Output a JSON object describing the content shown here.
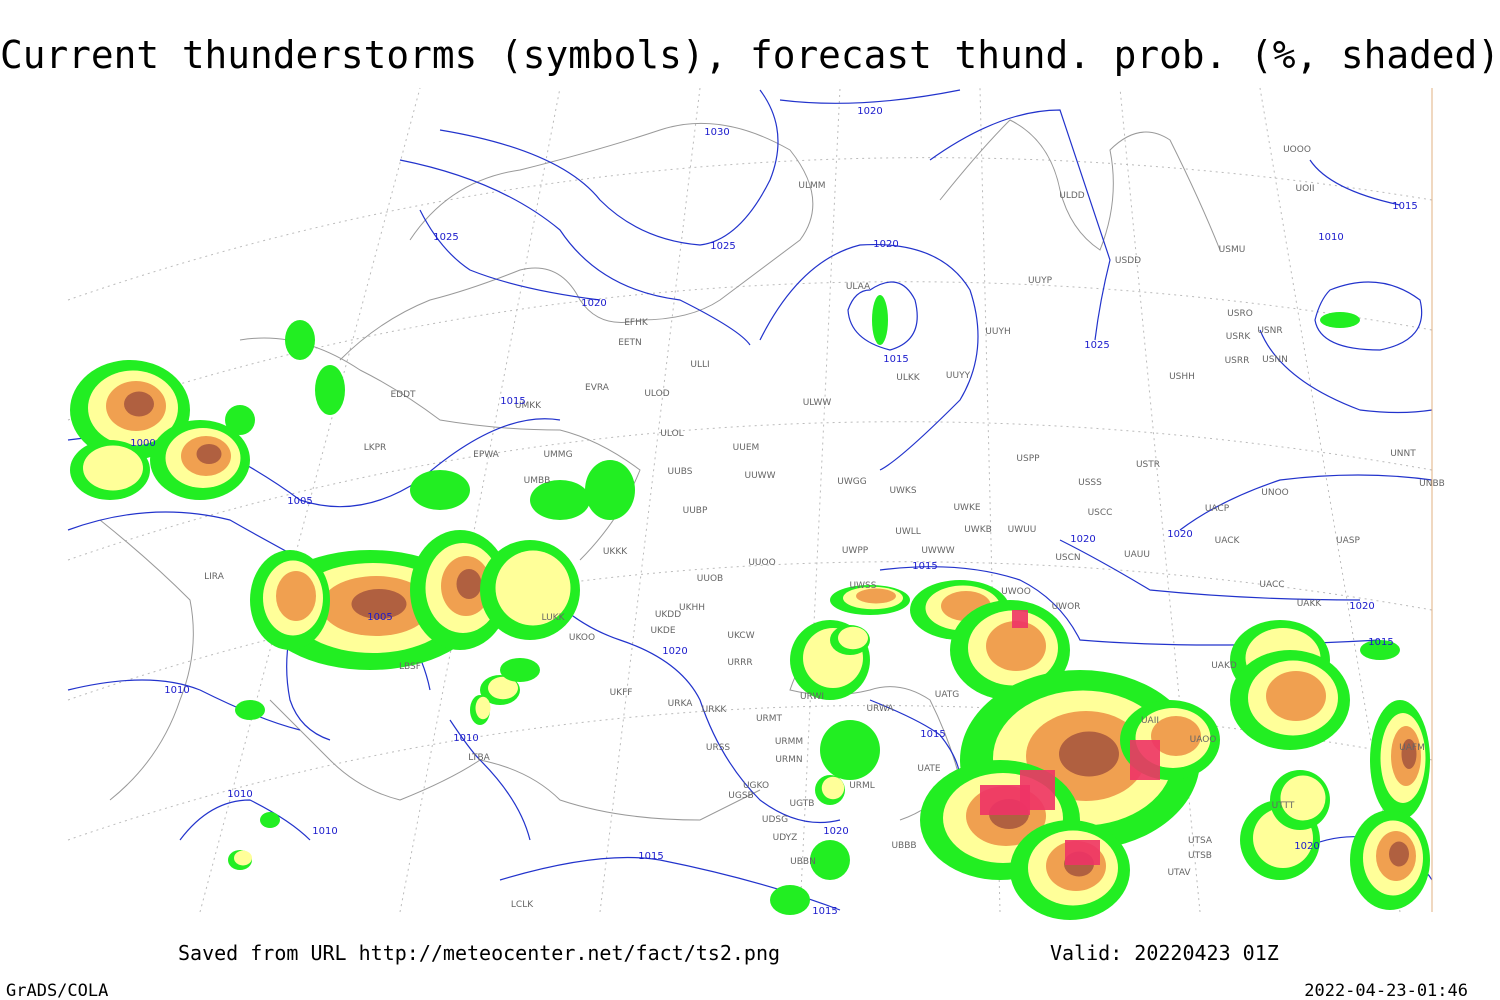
{
  "title": "Current thunderstorms (symbols), forecast thund. prob. (%, shaded)",
  "footer": {
    "source": "Saved from URL http://meteocenter.net/fact/ts2.png",
    "valid": "Valid: 20220423 01Z",
    "software": "GrADS/COLA",
    "timestamp": "2022-04-23-01:46"
  },
  "stations": [
    "ULMM",
    "ULDD",
    "UOOO",
    "UOII",
    "USMU",
    "USDD",
    "UUYP",
    "ULAA",
    "USRO",
    "USRK",
    "USNR",
    "USRR",
    "USNN",
    "UUYH",
    "USHH",
    "EFHK",
    "EETN",
    "ULLI",
    "ULKK",
    "UUYY",
    "EVRA",
    "ULOD",
    "ULWW",
    "EDDT",
    "UMKK",
    "ULOL",
    "UUEM",
    "EPWA",
    "UMMG",
    "LKPR",
    "UUBS",
    "UUWW",
    "UMBB",
    "UWGG",
    "USPP",
    "USTR",
    "UWKS",
    "USSS",
    "UNNT",
    "UNBB",
    "UNOO",
    "UWKE",
    "USCC",
    "UACP",
    "UUBP",
    "UWKB",
    "UWUU",
    "UWLL",
    "UACK",
    "UASP",
    "UKKK",
    "UWPP",
    "UWWW",
    "USCN",
    "UAUU",
    "UUOO",
    "LIRA",
    "UUOB",
    "UACC",
    "UWSS",
    "UWOO",
    "UKHH",
    "UWOR",
    "UAKK",
    "UKDD",
    "LUKK",
    "UKDE",
    "UKCW",
    "UKOO",
    "URRR",
    "LBSF",
    "UAKD",
    "UKFF",
    "URKA",
    "URKK",
    "URWI",
    "UATG",
    "URWA",
    "UAII",
    "URMT",
    "URMM",
    "URSS",
    "UAOO",
    "UAFM",
    "LTBA",
    "URMN",
    "UATE",
    "UGKO",
    "URML",
    "UGSB",
    "UTTT",
    "UGTB",
    "UDSG",
    "UBBB",
    "UTSA",
    "UDYZ",
    "UBBN",
    "UTSB",
    "UTAV",
    "LCLK"
  ],
  "isobar_labels": [
    "1030",
    "1020",
    "1025",
    "1025",
    "1020",
    "1020",
    "1015",
    "1025",
    "1015",
    "1010",
    "1015",
    "1000",
    "1005",
    "1020",
    "1020",
    "1015",
    "1005",
    "1020",
    "1015",
    "1020",
    "1010",
    "1010",
    "1015",
    "1010",
    "1010",
    "1020",
    "1015",
    "1020",
    "1015"
  ]
}
